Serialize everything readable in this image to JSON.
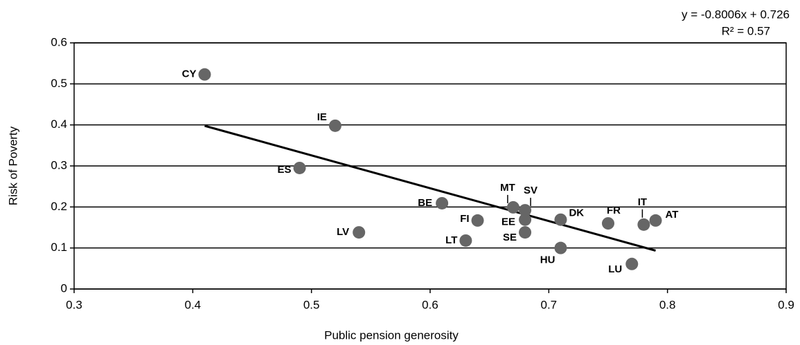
{
  "chart_data": {
    "type": "scatter",
    "x_label": "Public pension generosity",
    "y_label": "Risk of Poverty",
    "equation": "y = -0.8006x + 0.726",
    "r_squared": "R² = 0.57",
    "labels": [
      "CY",
      "IE",
      "ES",
      "BE",
      "LV",
      "FI",
      "LT",
      "MT",
      "SV",
      "EE",
      "SE",
      "DK",
      "HU",
      "FR",
      "IT",
      "AT",
      "LU"
    ],
    "x": [
      0.41,
      0.52,
      0.49,
      0.61,
      0.54,
      0.64,
      0.63,
      0.67,
      0.68,
      0.68,
      0.68,
      0.71,
      0.71,
      0.75,
      0.78,
      0.79,
      0.77
    ],
    "values": [
      0.523,
      0.398,
      0.295,
      0.209,
      0.138,
      0.167,
      0.118,
      0.199,
      0.192,
      0.169,
      0.138,
      0.169,
      0.1,
      0.16,
      0.157,
      0.167,
      0.061
    ],
    "color": "#666666",
    "trendline": {
      "slope": -0.8006,
      "intercept": 0.726,
      "x": [
        0.41,
        0.79
      ],
      "color": "#000000"
    },
    "xlim": [
      0.3,
      0.9
    ],
    "xticks": [
      0.3,
      0.4,
      0.5,
      0.6,
      0.7,
      0.8,
      0.9
    ],
    "ylim": [
      0,
      0.6
    ],
    "yticks": [
      0,
      0.1,
      0.2,
      0.3,
      0.4,
      0.5,
      0.6
    ],
    "grid": true
  }
}
